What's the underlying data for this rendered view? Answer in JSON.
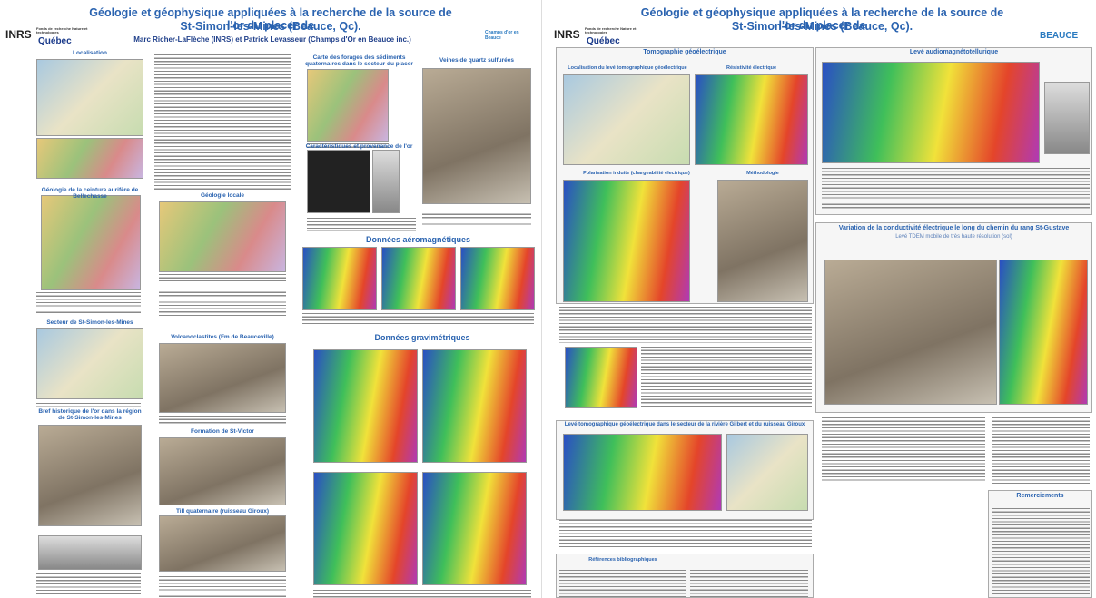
{
  "posters": [
    {
      "logos": {
        "inst": "INRS",
        "fund": "Fonds de recherche Nature et technologies",
        "gov": "Québec",
        "partner": "Champs d'or en Beauce"
      },
      "title": [
        "Géologie et géophysique appliquées à la recherche de la source de l'or du placer de",
        "St-Simon-les-Mines (Beauce, Qc)."
      ],
      "authors": "Marc Richer-LaFlèche (INRS) et Patrick Levasseur (Champs d'Or en Beauce inc.)",
      "sections": [
        "Localisation",
        "Géologie de la ceinture aurifère de Bellechasse",
        "Secteur de St-Simon-les-Mines",
        "Bref historique de l'or dans la région de St-Simon-les-Mines",
        "Géologie locale",
        "Volcanoclastites (Fm de Beauceville)",
        "Formation de St-Victor",
        "Till quaternaire (ruisseau Giroux)",
        "Carte des forages des sédiments quaternaires dans le secteur du placer",
        "Caractéristiques et provenance de l'or",
        "Veines de quartz sulfurées",
        "Données aéromagnétiques",
        "Données gravimétriques"
      ]
    },
    {
      "logos": {
        "inst": "INRS",
        "fund": "Fonds de recherche Nature et technologies",
        "gov": "Québec",
        "partner": "BEAUCE"
      },
      "title": [
        "Géologie et géophysique appliquées à la recherche de la source de l'or du placer de",
        "St-Simon-les-Mines (Beauce, Qc)."
      ],
      "sections": [
        "Tomographie géoélectrique",
        "Localisation du levé tomographique géoélectrique",
        "Résistivité électrique",
        "Polarisation induite (chargeabilité électrique)",
        "Méthodologie",
        "Levé tomographique géoélectrique dans le secteur de la rivière Gilbert et du ruisseau Giroux",
        "Références bibliographiques",
        "Levé audiomagnétotellurique",
        "Variation de la conductivité électrique le long du chemin du rang St-Gustave",
        "Levé TDEM mobile de très haute résolution (sol)",
        "Remerciements"
      ]
    }
  ]
}
